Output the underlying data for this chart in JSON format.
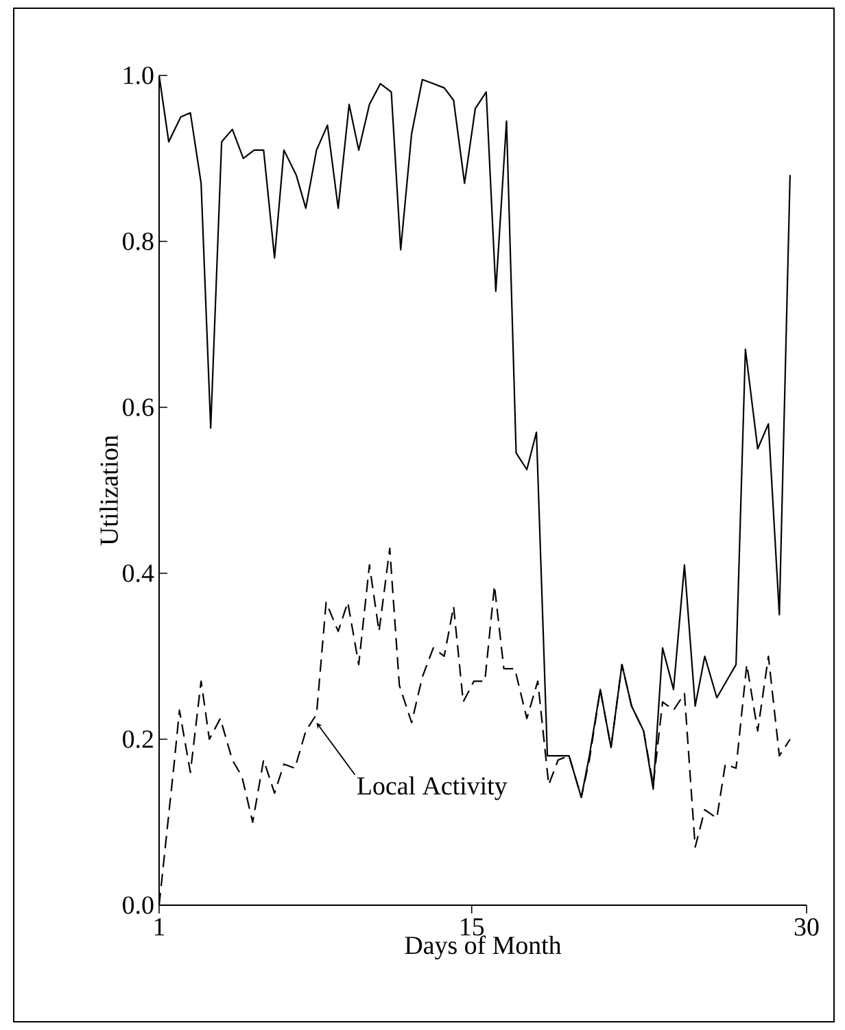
{
  "chart_data": {
    "type": "line",
    "xlabel": "Days of Month",
    "ylabel": "Utilization",
    "xlim": [
      1,
      30
    ],
    "ylim": [
      0,
      1.0
    ],
    "xticks": [
      1,
      15,
      30
    ],
    "yticks": [
      {
        "value": 0,
        "label": "0.0"
      },
      {
        "value": 0.2,
        "label": "0.2"
      },
      {
        "value": 0.4,
        "label": "0.4"
      },
      {
        "value": 0.6,
        "label": "0.6"
      },
      {
        "value": 0.8,
        "label": "0.8"
      },
      {
        "value": 1.0,
        "label": "1.0"
      }
    ],
    "marker": "none",
    "grid": false,
    "annotations": [
      {
        "text": "Local Activity",
        "x": 8.05,
        "y": 0.22
      }
    ],
    "series": [
      {
        "color": "#000000",
        "line_style": "solid",
        "x": [
          1.0,
          1.43,
          1.97,
          2.4,
          2.88,
          3.31,
          3.8,
          4.28,
          4.77,
          5.26,
          5.68,
          6.17,
          6.59,
          7.14,
          7.57,
          8.05,
          8.54,
          9.02,
          9.51,
          9.94,
          10.42,
          10.91,
          11.4,
          11.82,
          12.31,
          12.79,
          13.28,
          13.77,
          14.19,
          14.68,
          15.16,
          15.65,
          16.08,
          16.56,
          16.99,
          17.47,
          17.9,
          18.39,
          18.87,
          19.36,
          19.91,
          20.27,
          20.76,
          21.24,
          21.73,
          22.16,
          22.7,
          23.13,
          23.55,
          24.04,
          24.53,
          25.01,
          25.44,
          25.98,
          26.41,
          26.84,
          27.26,
          27.81,
          28.29,
          28.78,
          29.26
        ],
        "values": [
          1.0,
          0.92,
          0.95,
          0.955,
          0.87,
          0.575,
          0.92,
          0.935,
          0.9,
          0.91,
          0.91,
          0.78,
          0.91,
          0.88,
          0.84,
          0.91,
          0.94,
          0.84,
          0.965,
          0.91,
          0.965,
          0.99,
          0.98,
          0.79,
          0.93,
          0.995,
          0.99,
          0.985,
          0.97,
          0.87,
          0.96,
          0.98,
          0.74,
          0.945,
          0.545,
          0.525,
          0.57,
          0.18,
          0.18,
          0.18,
          0.13,
          0.18,
          0.26,
          0.19,
          0.29,
          0.24,
          0.21,
          0.14,
          0.31,
          0.26,
          0.41,
          0.24,
          0.3,
          0.25,
          0.27,
          0.29,
          0.67,
          0.55,
          0.58,
          0.35,
          0.88
        ]
      },
      {
        "color": "#000000",
        "line_style": "dashed",
        "x": [
          1.0,
          1.67,
          1.91,
          2.4,
          2.88,
          3.25,
          3.74,
          4.28,
          4.71,
          5.19,
          5.68,
          6.17,
          6.59,
          7.08,
          7.57,
          8.05,
          8.48,
          9.02,
          9.45,
          9.94,
          10.42,
          10.85,
          11.33,
          11.76,
          12.31,
          12.79,
          13.28,
          13.77,
          14.19,
          14.62,
          15.1,
          15.59,
          16.02,
          16.44,
          16.93,
          17.47,
          17.96,
          18.45,
          18.87,
          19.36,
          19.91,
          20.27,
          20.76,
          21.24,
          21.73,
          22.16,
          22.7,
          23.13,
          23.55,
          24.04,
          24.53,
          25.01,
          25.44,
          25.98,
          26.36,
          26.84,
          27.32,
          27.81,
          28.29,
          28.78,
          29.26
        ],
        "values": [
          0.0,
          0.17,
          0.235,
          0.16,
          0.27,
          0.2,
          0.225,
          0.175,
          0.155,
          0.1,
          0.175,
          0.135,
          0.17,
          0.165,
          0.21,
          0.23,
          0.365,
          0.33,
          0.365,
          0.29,
          0.41,
          0.33,
          0.43,
          0.265,
          0.22,
          0.275,
          0.31,
          0.3,
          0.36,
          0.245,
          0.27,
          0.27,
          0.385,
          0.285,
          0.285,
          0.225,
          0.27,
          0.145,
          0.175,
          0.18,
          0.13,
          0.175,
          0.26,
          0.19,
          0.29,
          0.24,
          0.21,
          0.145,
          0.245,
          0.235,
          0.255,
          0.07,
          0.115,
          0.105,
          0.17,
          0.165,
          0.29,
          0.21,
          0.3,
          0.18,
          0.2
        ]
      }
    ]
  }
}
